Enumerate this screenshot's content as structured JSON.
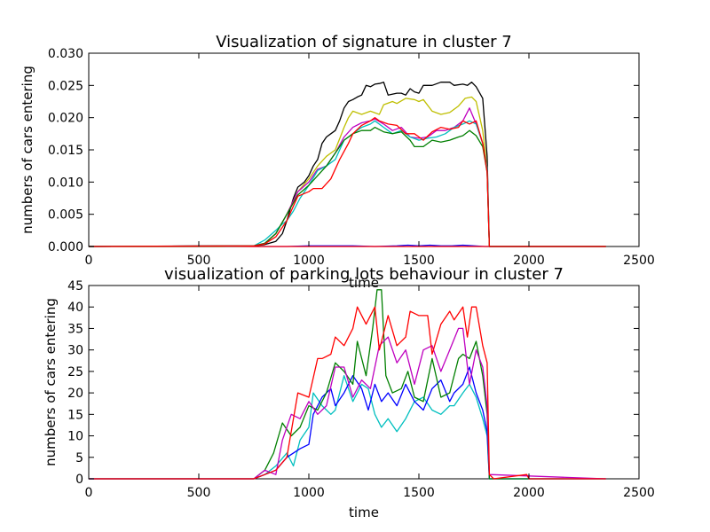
{
  "chart_data": [
    {
      "type": "line",
      "title": "Visualization of signature in cluster 7",
      "xlabel": "time",
      "ylabel": "numbers of cars entering",
      "xlim": [
        0,
        2500
      ],
      "ylim": [
        0,
        0.03
      ],
      "xticks": [
        "0",
        "500",
        "1000",
        "1500",
        "2000",
        "2500"
      ],
      "yticks": [
        "0.000",
        "0.005",
        "0.010",
        "0.015",
        "0.020",
        "0.025",
        "0.030"
      ],
      "grid": false,
      "series": [
        {
          "color": "#0000ff",
          "x": [
            0,
            900,
            1000,
            1100,
            1200,
            1300,
            1400,
            1450,
            1500,
            1550,
            1600,
            1650,
            1700,
            1750,
            1800,
            2350
          ],
          "y": [
            0,
            0,
            0.0001,
            0.0001,
            0.0001,
            0,
            0.0001,
            0.0002,
            0.0001,
            0.0002,
            0.0001,
            0.0001,
            0.0002,
            0.0001,
            0,
            0
          ]
        },
        {
          "color": "#ff0000",
          "x": [
            0,
            2350
          ],
          "y": [
            0,
            0
          ]
        },
        {
          "color": "#000000",
          "x": [
            0,
            600,
            750,
            800,
            850,
            880,
            900,
            930,
            950,
            980,
            1000,
            1020,
            1040,
            1060,
            1080,
            1100,
            1120,
            1140,
            1160,
            1180,
            1200,
            1220,
            1240,
            1260,
            1280,
            1300,
            1320,
            1340,
            1360,
            1400,
            1420,
            1440,
            1460,
            1480,
            1500,
            1520,
            1560,
            1600,
            1640,
            1660,
            1700,
            1720,
            1740,
            1760,
            1790,
            1810,
            1820,
            2350
          ],
          "y": [
            0,
            0.0001,
            0.0001,
            0.0003,
            0.0008,
            0.002,
            0.004,
            0.0075,
            0.0092,
            0.01,
            0.011,
            0.0125,
            0.0135,
            0.016,
            0.017,
            0.0175,
            0.018,
            0.0195,
            0.0215,
            0.0225,
            0.0228,
            0.0232,
            0.0235,
            0.025,
            0.0248,
            0.0252,
            0.0253,
            0.0255,
            0.0235,
            0.0238,
            0.0238,
            0.0235,
            0.0245,
            0.024,
            0.0238,
            0.025,
            0.025,
            0.0255,
            0.0255,
            0.025,
            0.0252,
            0.025,
            0.0255,
            0.0248,
            0.023,
            0.014,
            0,
            0
          ]
        },
        {
          "color": "#bfbf00",
          "x": [
            0,
            600,
            750,
            800,
            850,
            900,
            950,
            1000,
            1040,
            1080,
            1120,
            1160,
            1180,
            1200,
            1240,
            1280,
            1320,
            1340,
            1380,
            1400,
            1440,
            1480,
            1500,
            1520,
            1560,
            1600,
            1640,
            1680,
            1710,
            1740,
            1760,
            1790,
            1810,
            1820,
            2350
          ],
          "y": [
            0,
            0,
            0.0001,
            0.0005,
            0.002,
            0.005,
            0.0085,
            0.0105,
            0.0125,
            0.014,
            0.015,
            0.0185,
            0.02,
            0.021,
            0.0205,
            0.021,
            0.0205,
            0.022,
            0.0225,
            0.0222,
            0.023,
            0.0228,
            0.0225,
            0.0228,
            0.021,
            0.0205,
            0.0208,
            0.0218,
            0.023,
            0.0232,
            0.0225,
            0.018,
            0.012,
            0,
            0
          ]
        },
        {
          "color": "#bf00bf",
          "x": [
            0,
            750,
            800,
            850,
            900,
            950,
            1000,
            1040,
            1080,
            1120,
            1160,
            1200,
            1240,
            1280,
            1300,
            1340,
            1380,
            1420,
            1460,
            1500,
            1540,
            1580,
            1620,
            1660,
            1700,
            1730,
            1760,
            1790,
            1810,
            1820,
            2350
          ],
          "y": [
            0,
            0.0001,
            0.0005,
            0.002,
            0.005,
            0.0085,
            0.01,
            0.012,
            0.0125,
            0.0145,
            0.017,
            0.0185,
            0.0192,
            0.0195,
            0.0198,
            0.019,
            0.018,
            0.0185,
            0.017,
            0.0168,
            0.017,
            0.018,
            0.018,
            0.0185,
            0.0195,
            0.0215,
            0.019,
            0.016,
            0.012,
            0,
            0
          ]
        },
        {
          "color": "#00bfbf",
          "x": [
            0,
            750,
            800,
            850,
            880,
            900,
            930,
            960,
            1000,
            1040,
            1080,
            1120,
            1160,
            1200,
            1240,
            1280,
            1300,
            1340,
            1380,
            1420,
            1460,
            1500,
            1540,
            1580,
            1620,
            1660,
            1700,
            1730,
            1760,
            1790,
            1810,
            1820,
            2350
          ],
          "y": [
            0,
            0.0001,
            0.001,
            0.0025,
            0.0035,
            0.004,
            0.0055,
            0.0075,
            0.0095,
            0.0118,
            0.0125,
            0.0135,
            0.0165,
            0.0175,
            0.0185,
            0.019,
            0.0195,
            0.0185,
            0.0175,
            0.018,
            0.017,
            0.0165,
            0.0168,
            0.017,
            0.0175,
            0.0185,
            0.019,
            0.0195,
            0.019,
            0.016,
            0.012,
            0,
            0
          ]
        },
        {
          "color": "#007f00",
          "x": [
            0,
            750,
            800,
            850,
            900,
            950,
            1000,
            1040,
            1080,
            1120,
            1160,
            1200,
            1240,
            1280,
            1300,
            1340,
            1380,
            1420,
            1460,
            1480,
            1520,
            1560,
            1600,
            1640,
            1680,
            1700,
            1730,
            1760,
            1790,
            1810,
            1820,
            2350
          ],
          "y": [
            0,
            0.0001,
            0.0005,
            0.002,
            0.005,
            0.008,
            0.0095,
            0.011,
            0.0125,
            0.0145,
            0.0165,
            0.0175,
            0.018,
            0.018,
            0.0185,
            0.0178,
            0.0175,
            0.0178,
            0.0165,
            0.0155,
            0.0155,
            0.0165,
            0.0162,
            0.0165,
            0.017,
            0.0172,
            0.018,
            0.0172,
            0.0155,
            0.0115,
            0,
            0
          ]
        },
        {
          "color": "#ff0000",
          "x": [
            0,
            750,
            800,
            850,
            900,
            950,
            1000,
            1020,
            1060,
            1100,
            1140,
            1180,
            1200,
            1240,
            1280,
            1300,
            1320,
            1360,
            1400,
            1440,
            1480,
            1520,
            1560,
            1600,
            1640,
            1680,
            1700,
            1730,
            1760,
            1790,
            1810,
            1820,
            2350
          ],
          "y": [
            0,
            0.0001,
            0.0004,
            0.0015,
            0.004,
            0.0078,
            0.0085,
            0.009,
            0.009,
            0.0105,
            0.0135,
            0.016,
            0.0175,
            0.0188,
            0.0195,
            0.02,
            0.0195,
            0.019,
            0.0188,
            0.0175,
            0.0175,
            0.0165,
            0.0178,
            0.0185,
            0.0182,
            0.0185,
            0.0195,
            0.019,
            0.0195,
            0.016,
            0.0115,
            0,
            0
          ]
        }
      ]
    },
    {
      "type": "line",
      "title": "visualization of parking lots behaviour in cluster 7",
      "xlabel": "time",
      "ylabel": "numbers of cars entering",
      "xlim": [
        0,
        2500
      ],
      "ylim": [
        0,
        45
      ],
      "xticks": [
        "0",
        "500",
        "1000",
        "1500",
        "2000",
        "2500"
      ],
      "yticks": [
        "0",
        "5",
        "10",
        "15",
        "20",
        "25",
        "30",
        "35",
        "40",
        "45"
      ],
      "grid": false,
      "series": [
        {
          "color": "#00bfbf",
          "x": [
            0,
            750,
            800,
            850,
            900,
            930,
            960,
            1000,
            1020,
            1060,
            1100,
            1120,
            1160,
            1200,
            1240,
            1270,
            1300,
            1330,
            1360,
            1400,
            1440,
            1480,
            1520,
            1560,
            1600,
            1640,
            1660,
            1700,
            1730,
            1760,
            1790,
            1810,
            1820,
            2350
          ],
          "y": [
            0,
            0,
            1,
            3,
            6,
            3,
            9,
            12,
            20,
            17,
            15,
            16,
            24,
            18,
            22,
            21,
            15,
            12,
            14,
            11,
            14,
            18,
            19,
            16,
            15,
            17,
            17,
            20,
            22,
            19,
            14,
            10,
            0,
            0
          ]
        },
        {
          "color": "#0000ff",
          "x": [
            0,
            750,
            800,
            850,
            900,
            930,
            960,
            1000,
            1020,
            1060,
            1100,
            1120,
            1160,
            1200,
            1240,
            1270,
            1300,
            1330,
            1360,
            1400,
            1440,
            1480,
            1520,
            1560,
            1600,
            1640,
            1660,
            1700,
            1730,
            1760,
            1790,
            1810,
            1820,
            2350
          ],
          "y": [
            0,
            0,
            1,
            2,
            5,
            6,
            7,
            8,
            15,
            19,
            21,
            17,
            20,
            24,
            21,
            16,
            22,
            18,
            20,
            17,
            22,
            18,
            16,
            21,
            23,
            18,
            20,
            22,
            26,
            20,
            16,
            11,
            0,
            0
          ]
        },
        {
          "color": "#007f00",
          "x": [
            0,
            750,
            800,
            840,
            880,
            920,
            960,
            1000,
            1040,
            1080,
            1120,
            1160,
            1200,
            1220,
            1260,
            1290,
            1310,
            1330,
            1350,
            1380,
            1420,
            1450,
            1480,
            1520,
            1560,
            1600,
            1640,
            1680,
            1700,
            1730,
            1760,
            1790,
            1810,
            1820,
            2350
          ],
          "y": [
            0,
            0,
            2,
            6,
            13,
            10,
            12,
            17,
            16,
            20,
            27,
            25,
            22,
            32,
            24,
            35,
            44,
            44,
            24,
            20,
            21,
            25,
            19,
            18,
            28,
            19,
            20,
            28,
            29,
            28,
            32,
            24,
            15,
            0,
            0
          ]
        },
        {
          "color": "#bf00bf",
          "x": [
            0,
            750,
            800,
            850,
            880,
            920,
            960,
            1000,
            1040,
            1080,
            1120,
            1160,
            1200,
            1240,
            1280,
            1320,
            1360,
            1400,
            1440,
            1480,
            1520,
            1560,
            1600,
            1640,
            1680,
            1700,
            1730,
            1760,
            1790,
            1810,
            1820,
            2350
          ],
          "y": [
            0,
            0,
            2,
            1,
            9,
            15,
            14,
            18,
            15,
            17,
            26,
            26,
            19,
            23,
            21,
            31,
            33,
            27,
            30,
            22,
            30,
            31,
            25,
            30,
            35,
            35,
            22,
            30,
            26,
            17,
            1,
            0
          ]
        },
        {
          "color": "#ff0000",
          "x": [
            0,
            750,
            800,
            850,
            900,
            950,
            1000,
            1040,
            1060,
            1100,
            1120,
            1160,
            1200,
            1220,
            1260,
            1300,
            1320,
            1360,
            1400,
            1440,
            1460,
            1500,
            1540,
            1560,
            1600,
            1640,
            1660,
            1700,
            1720,
            1740,
            1760,
            1790,
            1810,
            1820,
            1840,
            1990,
            2000,
            2350
          ],
          "y": [
            0,
            0,
            1,
            2,
            5,
            20,
            19,
            28,
            28,
            29,
            33,
            31,
            35,
            40,
            36,
            40,
            30,
            38,
            31,
            33,
            39,
            38,
            38,
            29,
            36,
            39,
            37,
            40,
            33,
            40,
            40,
            31,
            27,
            1,
            0,
            1,
            0,
            0
          ]
        }
      ]
    }
  ]
}
